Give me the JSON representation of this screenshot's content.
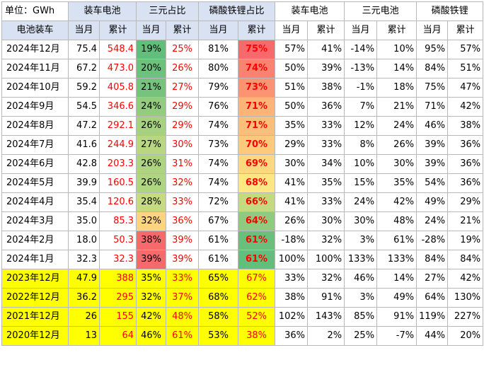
{
  "header": {
    "unit_label": "单位：GWh",
    "groups": [
      "装车电池",
      "三元占比",
      "磷酸铁锂占比",
      "装车电池",
      "三元电池",
      "磷酸铁锂"
    ],
    "row_label": "电池装车",
    "sub": [
      "当月",
      "累计"
    ]
  },
  "colors": {
    "grid": "#b8b8b8",
    "header_highlight": "#d9e2f3",
    "yellow_rows": "#ffff00",
    "red_text": "#ff0000"
  },
  "rows": [
    {
      "date": "2024年12月",
      "c": [
        "75.4",
        "548.4",
        "19%",
        "25%",
        "81%",
        "75%",
        "57%",
        "41%",
        "-14%",
        "10%",
        "95%",
        "57%"
      ],
      "tern_m": "#63be7b",
      "lfp_c": "#f8696b"
    },
    {
      "date": "2024年11月",
      "c": [
        "67.2",
        "473.0",
        "20%",
        "26%",
        "80%",
        "74%",
        "50%",
        "39%",
        "-13%",
        "14%",
        "84%",
        "51%"
      ],
      "tern_m": "#6cc17c",
      "lfp_c": "#f98370"
    },
    {
      "date": "2024年10月",
      "c": [
        "59.2",
        "405.8",
        "21%",
        "27%",
        "79%",
        "73%",
        "51%",
        "38%",
        "-1%",
        "18%",
        "75%",
        "47%"
      ],
      "tern_m": "#75c37c",
      "lfp_c": "#fa9473"
    },
    {
      "date": "2024年9月",
      "c": [
        "54.5",
        "346.6",
        "24%",
        "29%",
        "76%",
        "71%",
        "50%",
        "36%",
        "7%",
        "21%",
        "71%",
        "42%"
      ],
      "tern_m": "#93cc7e",
      "lfp_c": "#fcb479"
    },
    {
      "date": "2024年8月",
      "c": [
        "47.2",
        "292.1",
        "26%",
        "29%",
        "74%",
        "71%",
        "35%",
        "33%",
        "12%",
        "24%",
        "46%",
        "38%"
      ],
      "tern_m": "#a6d27f",
      "lfp_c": "#fcbf7b"
    },
    {
      "date": "2024年7月",
      "c": [
        "41.6",
        "244.9",
        "27%",
        "30%",
        "73%",
        "70%",
        "29%",
        "33%",
        "8%",
        "26%",
        "39%",
        "36%"
      ],
      "tern_m": "#b8d780",
      "lfp_c": "#fdca7d"
    },
    {
      "date": "2024年6月",
      "c": [
        "42.8",
        "203.3",
        "26%",
        "31%",
        "74%",
        "69%",
        "30%",
        "34%",
        "10%",
        "30%",
        "39%",
        "36%"
      ],
      "tern_m": "#afd480",
      "lfp_c": "#fed880"
    },
    {
      "date": "2024年5月",
      "c": [
        "39.9",
        "160.5",
        "26%",
        "32%",
        "74%",
        "68%",
        "41%",
        "35%",
        "15%",
        "35%",
        "54%",
        "36%"
      ],
      "tern_m": "#b0d580",
      "lfp_c": "#ffe884"
    },
    {
      "date": "2024年4月",
      "c": [
        "35.4",
        "120.6",
        "28%",
        "33%",
        "72%",
        "66%",
        "41%",
        "33%",
        "24%",
        "42%",
        "49%",
        "29%"
      ],
      "tern_m": "#c5da81",
      "lfp_c": "#c4da81"
    },
    {
      "date": "2024年3月",
      "c": [
        "35.0",
        "85.3",
        "32%",
        "36%",
        "67%",
        "64%",
        "26%",
        "30%",
        "30%",
        "48%",
        "24%",
        "21%"
      ],
      "tern_m": "#fed480",
      "lfp_c": "#8fcb7e"
    },
    {
      "date": "2024年2月",
      "c": [
        "18.0",
        "50.3",
        "38%",
        "39%",
        "61%",
        "61%",
        "-18%",
        "32%",
        "3%",
        "61%",
        "-28%",
        "19%"
      ],
      "tern_m": "#f8696b",
      "lfp_c": "#6abf7c"
    },
    {
      "date": "2024年1月",
      "c": [
        "32.3",
        "32.3",
        "39%",
        "39%",
        "61%",
        "61%",
        "100%",
        "100%",
        "133%",
        "133%",
        "84%",
        "84%"
      ],
      "tern_m": "#f8696b",
      "lfp_c": "#63be7b"
    }
  ],
  "yellow_rows": [
    {
      "date": "2023年12月",
      "c": [
        "47.9",
        "388",
        "35%",
        "33%",
        "65%",
        "67%",
        "33%",
        "32%",
        "46%",
        "14%",
        "27%",
        "42%"
      ]
    },
    {
      "date": "2022年12月",
      "c": [
        "36.2",
        "295",
        "32%",
        "37%",
        "68%",
        "62%",
        "38%",
        "91%",
        "3%",
        "49%",
        "64%",
        "130%"
      ]
    },
    {
      "date": "2021年12月",
      "c": [
        "26",
        "155",
        "42%",
        "48%",
        "58%",
        "52%",
        "102%",
        "143%",
        "85%",
        "91%",
        "119%",
        "227%"
      ]
    },
    {
      "date": "2020年12月",
      "c": [
        "13",
        "64",
        "46%",
        "61%",
        "53%",
        "38%",
        "36%",
        "2%",
        "25%",
        "-7%",
        "44%",
        "20%"
      ]
    }
  ]
}
